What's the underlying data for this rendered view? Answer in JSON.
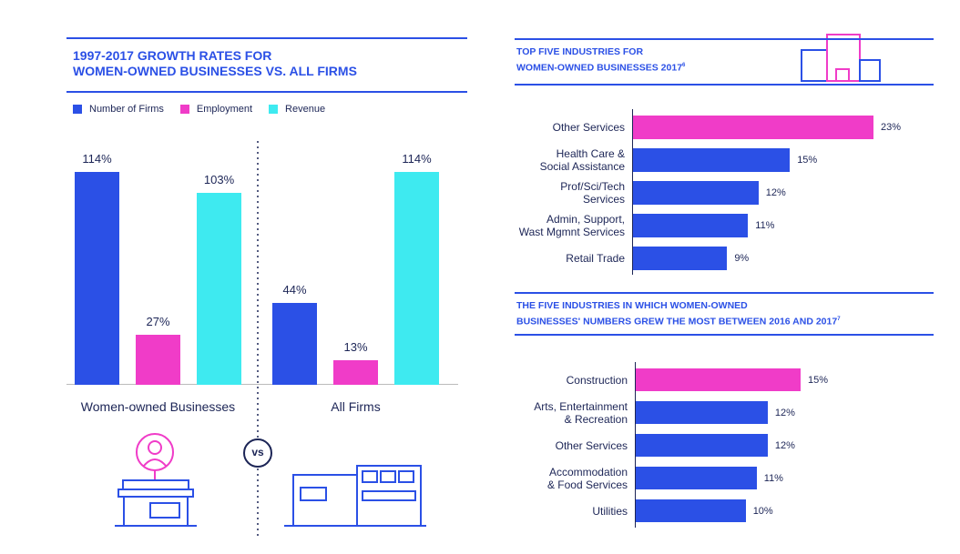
{
  "chart_data": [
    {
      "type": "grouped-bar",
      "title": [
        "1997-2017 GROWTH RATES FOR",
        "WOMEN-OWNED BUSINESSES VS. ALL FIRMS"
      ],
      "categories": [
        "Women-owned Businesses",
        "All Firms"
      ],
      "series": [
        {
          "name": "Number of Firms",
          "color": "#2b50e6",
          "values": [
            114,
            44
          ],
          "value_labels": [
            "114%",
            "44%"
          ]
        },
        {
          "name": "Employment",
          "color": "#f03cc8",
          "values": [
            27,
            13
          ],
          "value_labels": [
            "27%",
            "13%"
          ]
        },
        {
          "name": "Revenue",
          "color": "#3eeaf0",
          "values": [
            103,
            114
          ],
          "value_labels": [
            "103%",
            "114%"
          ]
        }
      ],
      "divider_label": "vs"
    },
    {
      "type": "hbar",
      "title": [
        "TOP FIVE INDUSTRIES FOR",
        "WOMEN-OWNED BUSINESSES 2017"
      ],
      "title_footnote": "6",
      "categories": [
        "Other Services",
        "Health Care &\nSocial Assistance",
        "Prof/Sci/Tech\nServices",
        "Admin, Support,\nWast Mgmnt Services",
        "Retail Trade"
      ],
      "values": [
        23,
        15,
        12,
        11,
        9
      ],
      "value_labels": [
        "23%",
        "15%",
        "12%",
        "11%",
        "9%"
      ],
      "colors": [
        "#f03cc8",
        "#2b50e6",
        "#2b50e6",
        "#2b50e6",
        "#2b50e6"
      ]
    },
    {
      "type": "hbar",
      "title": [
        "THE FIVE INDUSTRIES IN WHICH WOMEN-OWNED",
        "BUSINESSES' NUMBERS GREW THE MOST BETWEEN 2016 AND 2017"
      ],
      "title_footnote": "7",
      "categories": [
        "Construction",
        "Arts, Entertainment\n& Recreation",
        "Other Services",
        "Accommodation\n& Food Services",
        "Utilities"
      ],
      "values": [
        15,
        12,
        12,
        11,
        10
      ],
      "value_labels": [
        "15%",
        "12%",
        "12%",
        "11%",
        "10%"
      ],
      "colors": [
        "#f03cc8",
        "#2b50e6",
        "#2b50e6",
        "#2b50e6",
        "#2b50e6"
      ]
    }
  ]
}
